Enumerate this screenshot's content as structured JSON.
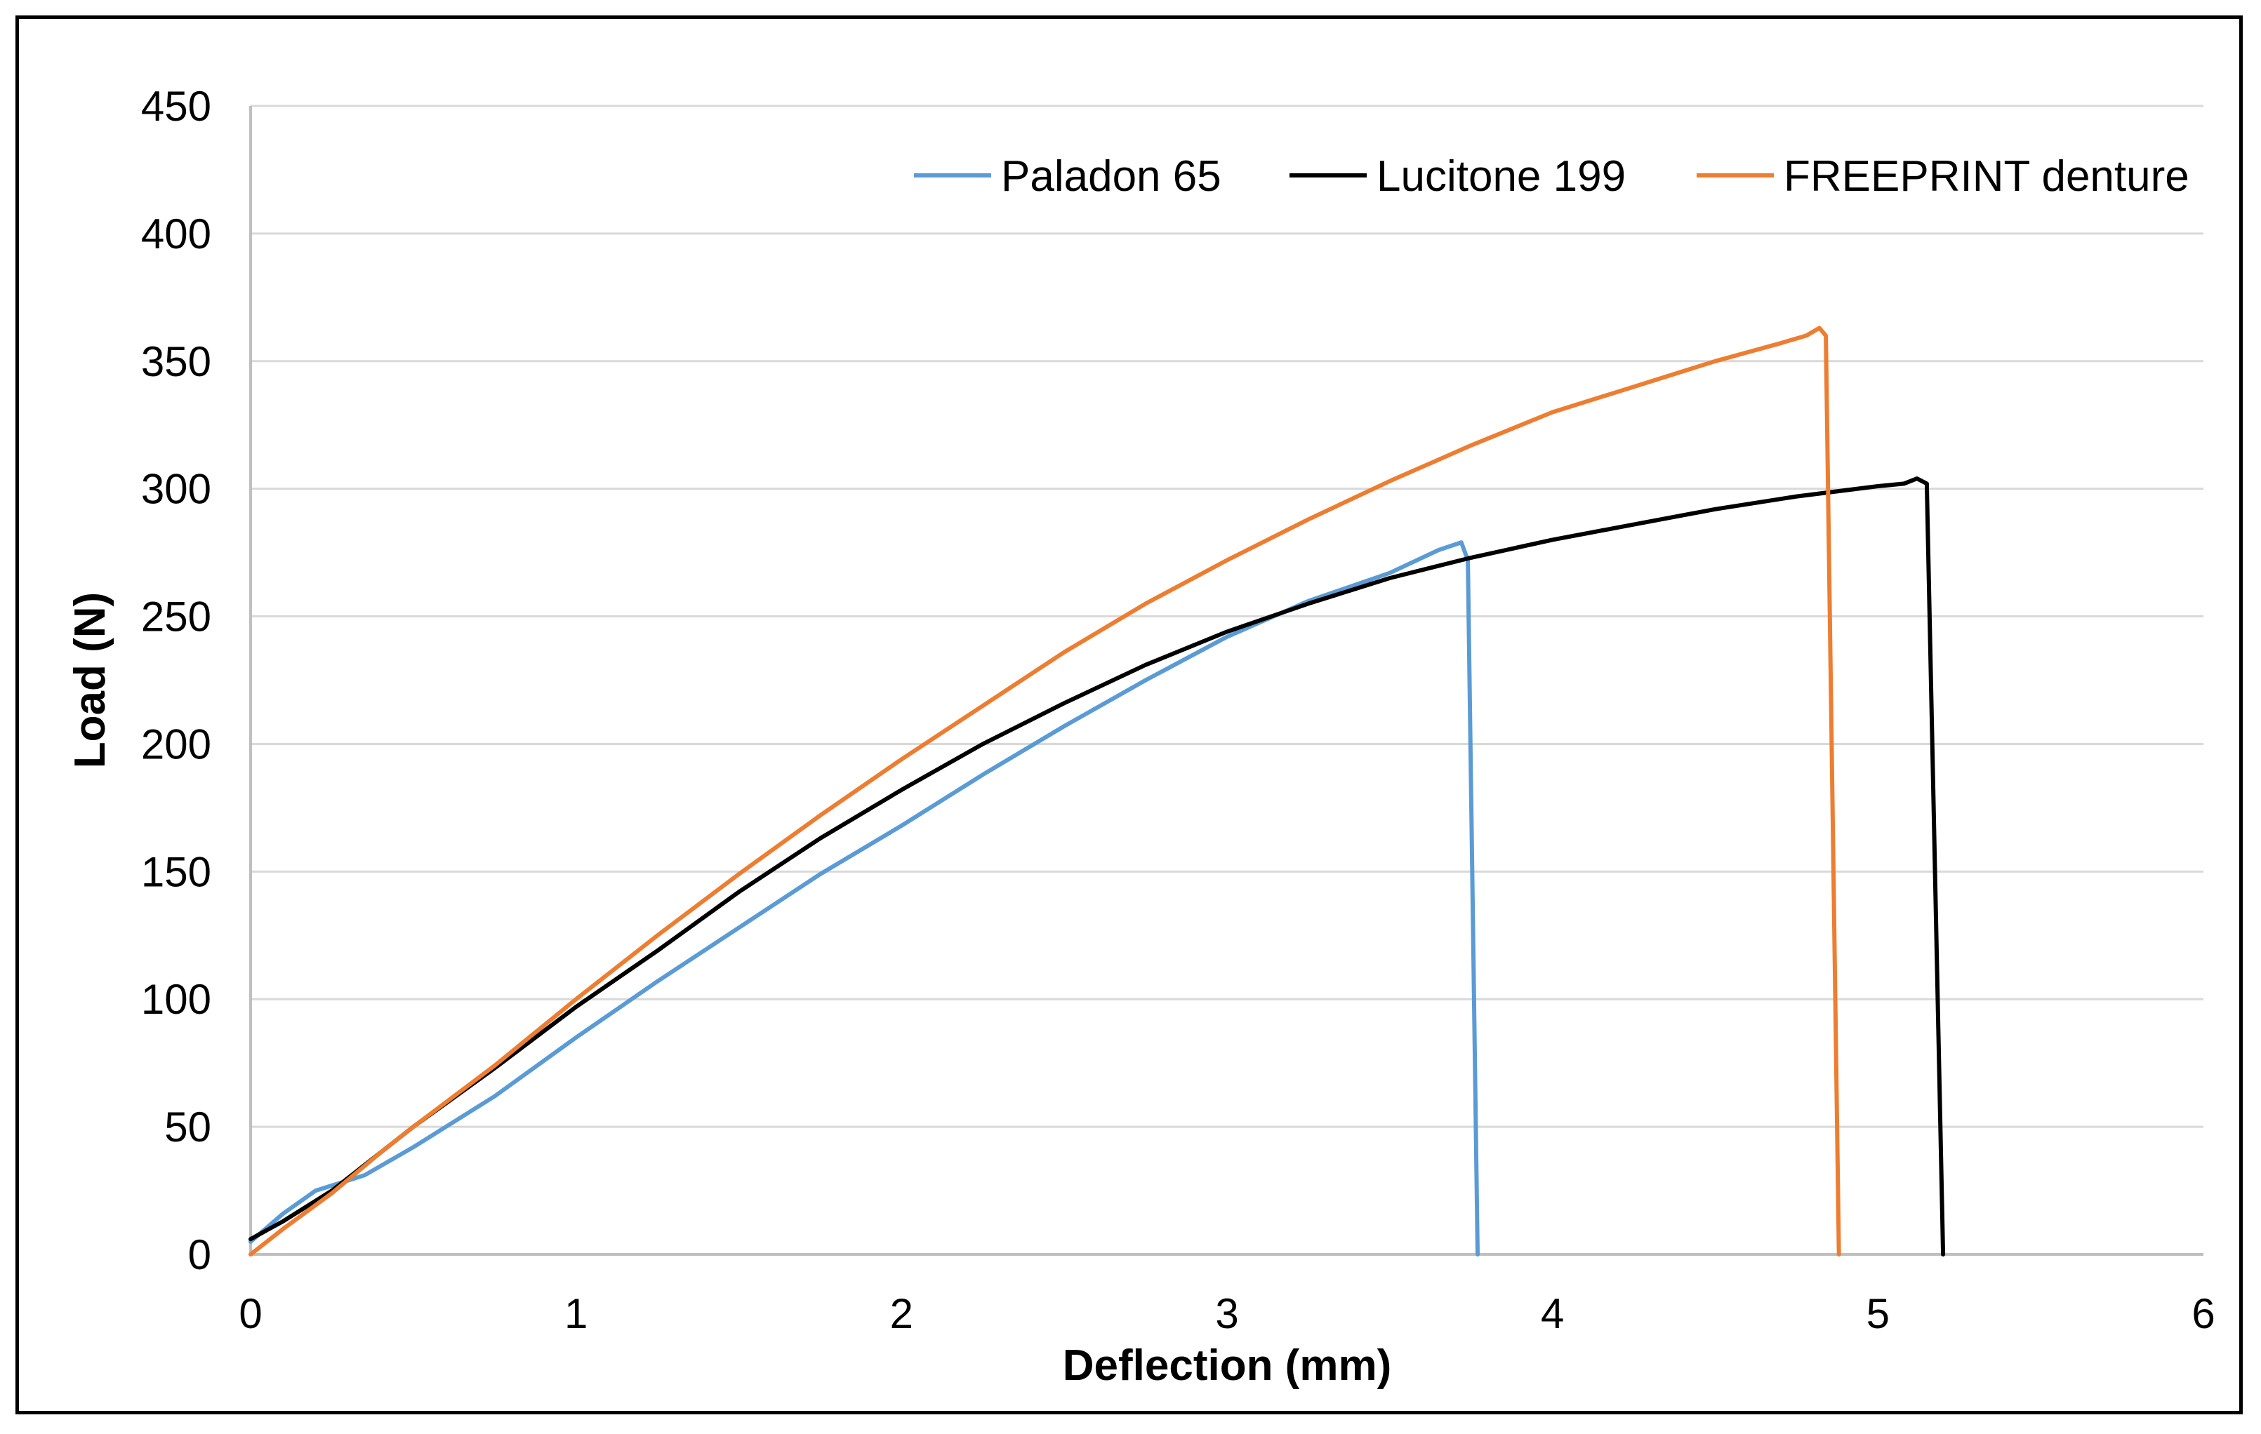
{
  "chart_data": {
    "type": "line",
    "title": "",
    "xlabel": "Deflection (mm)",
    "ylabel": "Load (N)",
    "xlim": [
      0,
      6
    ],
    "ylim": [
      0,
      450
    ],
    "xticks": [
      "0",
      "1",
      "2",
      "3",
      "4",
      "5",
      "6"
    ],
    "yticks": [
      "0",
      "50",
      "100",
      "150",
      "200",
      "250",
      "300",
      "350",
      "400",
      "450"
    ],
    "grid": "horizontal",
    "legend_position": "top-right",
    "series": [
      {
        "name": "Paladon 65",
        "color": "#5B9BD5",
        "points": [
          [
            0,
            5
          ],
          [
            0.1,
            16
          ],
          [
            0.2,
            25
          ],
          [
            0.35,
            31
          ],
          [
            0.5,
            42
          ],
          [
            0.75,
            62
          ],
          [
            1,
            85
          ],
          [
            1.25,
            107
          ],
          [
            1.5,
            128
          ],
          [
            1.75,
            149
          ],
          [
            2,
            168
          ],
          [
            2.25,
            188
          ],
          [
            2.5,
            207
          ],
          [
            2.75,
            225
          ],
          [
            3,
            242
          ],
          [
            3.25,
            256
          ],
          [
            3.5,
            267
          ],
          [
            3.65,
            276
          ],
          [
            3.72,
            279
          ],
          [
            3.74,
            272
          ],
          [
            3.77,
            0
          ]
        ]
      },
      {
        "name": "Lucitone 199",
        "color": "#000000",
        "points": [
          [
            0,
            6
          ],
          [
            0.1,
            13
          ],
          [
            0.25,
            25
          ],
          [
            0.4,
            40
          ],
          [
            0.5,
            50
          ],
          [
            0.75,
            73
          ],
          [
            1,
            97
          ],
          [
            1.25,
            119
          ],
          [
            1.5,
            142
          ],
          [
            1.75,
            163
          ],
          [
            2,
            182
          ],
          [
            2.25,
            200
          ],
          [
            2.5,
            216
          ],
          [
            2.75,
            231
          ],
          [
            3,
            244
          ],
          [
            3.25,
            255
          ],
          [
            3.5,
            265
          ],
          [
            3.75,
            273
          ],
          [
            4,
            280
          ],
          [
            4.25,
            286
          ],
          [
            4.5,
            292
          ],
          [
            4.75,
            297
          ],
          [
            5,
            301
          ],
          [
            5.08,
            302
          ],
          [
            5.12,
            304
          ],
          [
            5.15,
            302
          ],
          [
            5.2,
            0
          ]
        ]
      },
      {
        "name": "FREEPRINT denture",
        "color": "#ED7D31",
        "points": [
          [
            0,
            0
          ],
          [
            0.1,
            10
          ],
          [
            0.25,
            24
          ],
          [
            0.4,
            40
          ],
          [
            0.5,
            50
          ],
          [
            0.75,
            74
          ],
          [
            1,
            100
          ],
          [
            1.25,
            125
          ],
          [
            1.5,
            149
          ],
          [
            1.75,
            172
          ],
          [
            2,
            194
          ],
          [
            2.25,
            215
          ],
          [
            2.5,
            236
          ],
          [
            2.75,
            255
          ],
          [
            3,
            272
          ],
          [
            3.25,
            288
          ],
          [
            3.5,
            303
          ],
          [
            3.75,
            317
          ],
          [
            4,
            330
          ],
          [
            4.25,
            340
          ],
          [
            4.5,
            350
          ],
          [
            4.7,
            357
          ],
          [
            4.78,
            360
          ],
          [
            4.82,
            363
          ],
          [
            4.84,
            360
          ],
          [
            4.88,
            0
          ]
        ]
      }
    ]
  }
}
